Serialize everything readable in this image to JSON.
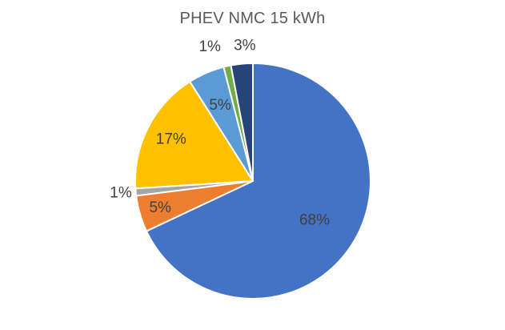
{
  "chart_data": {
    "type": "pie",
    "title": "PHEV NMC 15 kWh",
    "start_angle_deg": 0,
    "direction": "clockwise",
    "legend": "none",
    "slices": [
      {
        "value": 68,
        "label": "68%",
        "color": "#4472C4",
        "label_color": "#404040"
      },
      {
        "value": 5,
        "label": "5%",
        "color": "#ED7D31",
        "label_color": "#404040"
      },
      {
        "value": 1,
        "label": "1%",
        "color": "#A5A5A5",
        "label_color": "#404040"
      },
      {
        "value": 17,
        "label": "17%",
        "color": "#FFC000",
        "label_color": "#404040"
      },
      {
        "value": 5,
        "label": "5%",
        "color": "#5B9BD5",
        "label_color": "#404040"
      },
      {
        "value": 1,
        "label": "1%",
        "color": "#70AD47",
        "label_color": "#404040"
      },
      {
        "value": 3,
        "label": "3%",
        "color": "#264478",
        "label_color": "#404040"
      }
    ]
  }
}
